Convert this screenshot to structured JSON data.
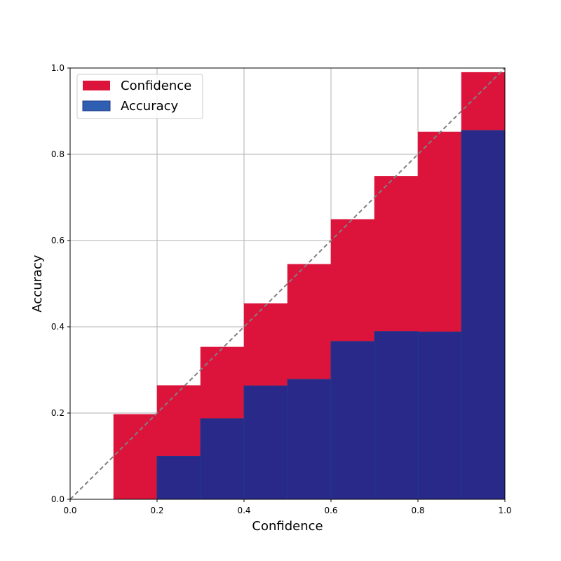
{
  "chart_data": {
    "type": "bar",
    "title": "",
    "xlabel": "Confidence",
    "ylabel": "Accuracy",
    "xlim": [
      0.0,
      1.0
    ],
    "ylim": [
      0.0,
      1.0
    ],
    "xticks": [
      "0.0",
      "0.2",
      "0.4",
      "0.6",
      "0.8",
      "1.0"
    ],
    "yticks": [
      "0.0",
      "0.2",
      "0.4",
      "0.6",
      "0.8",
      "1.0"
    ],
    "grid": true,
    "legend_position": "top-left",
    "bins": [
      [
        0.0,
        0.1
      ],
      [
        0.1,
        0.2
      ],
      [
        0.2,
        0.3
      ],
      [
        0.3,
        0.4
      ],
      [
        0.4,
        0.5
      ],
      [
        0.5,
        0.6
      ],
      [
        0.6,
        0.7
      ],
      [
        0.7,
        0.8
      ],
      [
        0.8,
        0.9
      ],
      [
        0.9,
        1.0
      ]
    ],
    "series": [
      {
        "name": "Confidence",
        "color": "#dc143c",
        "values": [
          0.0,
          0.197,
          0.264,
          0.353,
          0.454,
          0.545,
          0.649,
          0.749,
          0.852,
          0.99
        ]
      },
      {
        "name": "Accuracy",
        "color": "#1e2a8c",
        "values": [
          0.0,
          0.0,
          0.1,
          0.187,
          0.263,
          0.278,
          0.366,
          0.389,
          0.388,
          0.855
        ]
      }
    ],
    "reference_line": {
      "from": [
        0.0,
        0.0
      ],
      "to": [
        1.0,
        1.0
      ],
      "style": "dashed",
      "color": "#808080"
    }
  }
}
